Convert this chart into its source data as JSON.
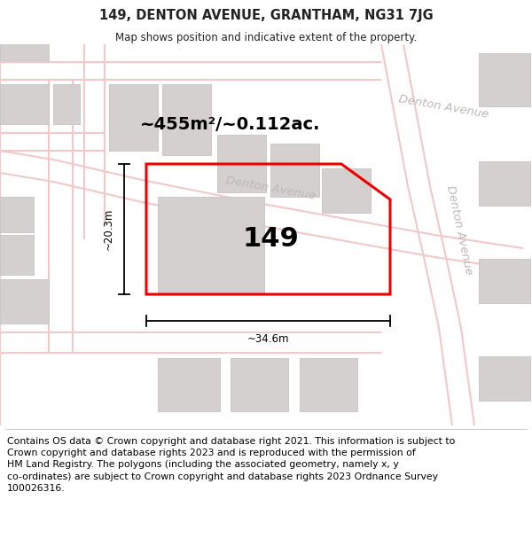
{
  "title": "149, DENTON AVENUE, GRANTHAM, NG31 7JG",
  "subtitle": "Map shows position and indicative extent of the property.",
  "footer": "Contains OS data © Crown copyright and database right 2021. This information is subject to\nCrown copyright and database rights 2023 and is reproduced with the permission of\nHM Land Registry. The polygons (including the associated geometry, namely x, y\nco-ordinates) are subject to Crown copyright and database rights 2023 Ordnance Survey\n100026316.",
  "map_bg": "#f7f3f3",
  "road_color": "#f2c8c8",
  "building_color": "#d4d0d0",
  "building_edge": "#c8c4c4",
  "road_label_color": "#c0b8b8",
  "property_color": "#ee0000",
  "area_text": "~455m²/~0.112ac.",
  "width_text": "~34.6m",
  "height_text": "~20.3m",
  "property_label": "149",
  "footer_fontsize": 7.8,
  "title_fontsize": 10.5,
  "subtitle_fontsize": 8.5,
  "title_color": "#222222",
  "map_border_color": "#999999"
}
